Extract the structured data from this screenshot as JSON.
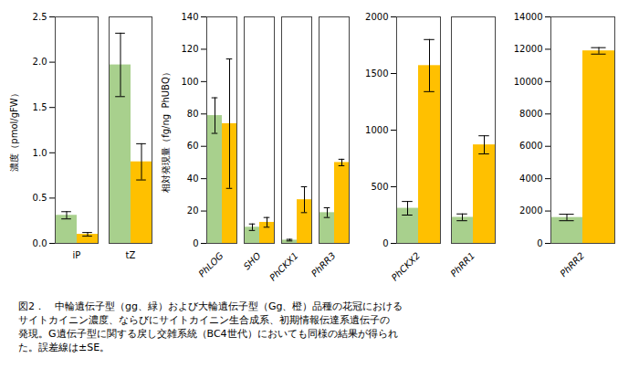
{
  "chart_data": [
    {
      "type": "bar",
      "categories": [
        "iP",
        "tZ"
      ],
      "series": [
        {
          "color": "#a8d08d",
          "values": [
            0.31,
            1.97
          ],
          "errors": [
            0.04,
            0.35
          ]
        },
        {
          "color": "#ffc000",
          "values": [
            0.1,
            0.9
          ],
          "errors": [
            0.02,
            0.2
          ]
        }
      ],
      "ylabel": "濃度（pmol/gFW）",
      "ylim": [
        0,
        2.5
      ],
      "yticks": [
        {
          "value": 0,
          "label": "0.0"
        },
        0.5,
        {
          "value": 1.0,
          "label": "1.0"
        },
        1.5,
        {
          "value": 2.0,
          "label": "2.0"
        },
        2.5
      ]
    },
    {
      "type": "bar",
      "categories": [
        "PhLOG",
        "SHO",
        "PhCKX1",
        "PhRR3"
      ],
      "series": [
        {
          "color": "#a8d08d",
          "values": [
            79,
            10,
            2,
            19
          ],
          "errors": [
            11,
            2,
            0.5,
            3
          ]
        },
        {
          "color": "#ffc000",
          "values": [
            74,
            13,
            27,
            50
          ],
          "errors": [
            40,
            3,
            8,
            2
          ]
        }
      ],
      "ylabel": "相対発現量（fg/ng  PhUBQ）",
      "ylim": [
        0,
        140
      ],
      "yticks": [
        0,
        20,
        40,
        60,
        80,
        100,
        120,
        140
      ]
    },
    {
      "type": "bar",
      "categories": [
        "PhCKX2",
        "PhRR1"
      ],
      "series": [
        {
          "color": "#a8d08d",
          "values": [
            310,
            230
          ],
          "errors": [
            60,
            30
          ]
        },
        {
          "color": "#ffc000",
          "values": [
            1570,
            870
          ],
          "errors": [
            230,
            80
          ]
        }
      ],
      "ylim": [
        0,
        2000
      ],
      "yticks": [
        0,
        500,
        1000,
        1500,
        2000
      ]
    },
    {
      "type": "bar",
      "categories": [
        "PhRR2"
      ],
      "series": [
        {
          "color": "#a8d08d",
          "values": [
            1600
          ],
          "errors": [
            200
          ]
        },
        {
          "color": "#ffc000",
          "values": [
            11900
          ],
          "errors": [
            200
          ]
        }
      ],
      "ylim": [
        0,
        14000
      ],
      "yticks": [
        0,
        2000,
        4000,
        6000,
        8000,
        10000,
        12000,
        14000
      ]
    }
  ],
  "caption": [
    "図2．　中輪遺伝子型（gg、緑）および大輪遺伝子型（Gg、橙）品種の花冠における",
    "サイトカイニン濃度、ならびにサイトカイニン生合成系、初期情報伝達系遺伝子の",
    "発現。G遺伝子型に関する戻し交雑系統（BC4世代）においても同様の結果が得られ",
    "た。誤差線は±SE。"
  ]
}
